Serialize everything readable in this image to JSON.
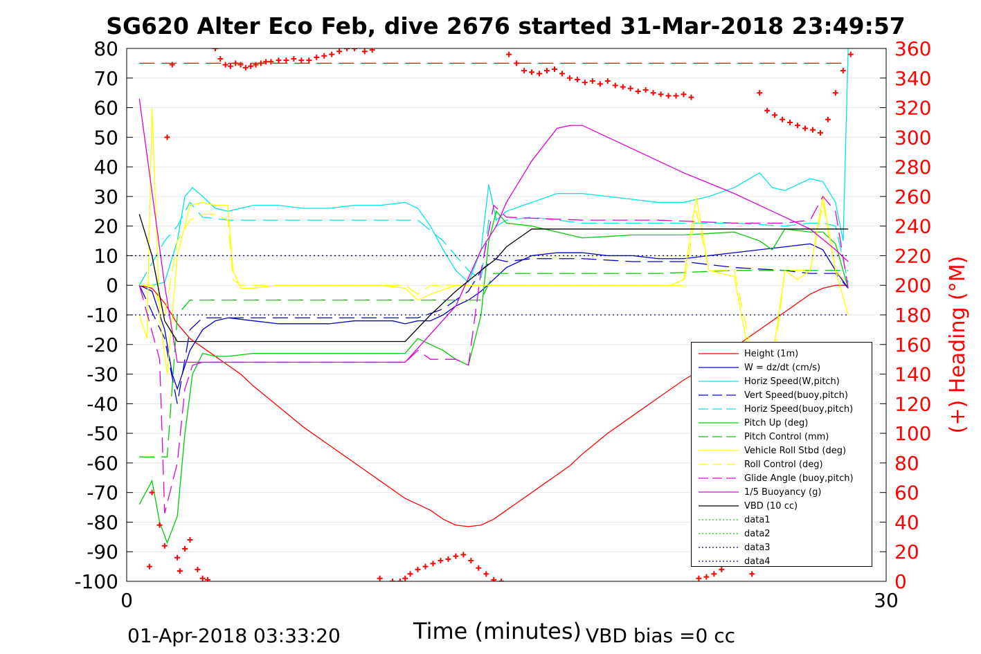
{
  "title": "SG620 Alter Eco Feb, dive 2676 started 31-Mar-2018 23:49:57",
  "footer": {
    "end_time": "01-Apr-2018 03:33:20",
    "xlabel": "Time (minutes)",
    "vbd_bias": "VBD bias =0 cc"
  },
  "chart_data": {
    "type": "line",
    "title": "SG620 Alter Eco Feb, dive 2676 started 31-Mar-2018 23:49:57",
    "xlabel": "Time (minutes)",
    "ylabel": "",
    "y2label": "(+) Heading (°M)",
    "xlim": [
      0,
      30
    ],
    "ylim": [
      -100,
      80
    ],
    "y2lim": [
      0,
      360
    ],
    "xticks": [
      "0",
      "30"
    ],
    "yticks": [
      "80",
      "70",
      "60",
      "50",
      "40",
      "30",
      "20",
      "10",
      "0",
      "-10",
      "-20",
      "-30",
      "-40",
      "-50",
      "-60",
      "-70",
      "-80",
      "-90",
      "-100"
    ],
    "y2ticks": [
      "360",
      "340",
      "320",
      "300",
      "280",
      "260",
      "240",
      "220",
      "200",
      "180",
      "160",
      "140",
      "120",
      "100",
      "80",
      "60",
      "40",
      "20",
      "0"
    ],
    "grid": true,
    "legend_position": "bottom-right",
    "series": [
      {
        "name": "Height (1m)",
        "color": "#ff0000",
        "style": "solid",
        "x": [
          0.5,
          1.0,
          1.5,
          2.0,
          2.5,
          3.0,
          3.5,
          4.0,
          4.5,
          5.0,
          6.0,
          7.0,
          8.0,
          9.0,
          10.0,
          11.0,
          12.0,
          12.5,
          13.0,
          13.5,
          14.0,
          14.5,
          15.0,
          15.5,
          16.0,
          16.5,
          17.0,
          17.5,
          18.0,
          19.0,
          20.0,
          21.0,
          22.0,
          23.0,
          24.0,
          25.0,
          25.5,
          26.0,
          26.5,
          27.0,
          27.5,
          28.0,
          28.5
        ],
        "y": [
          0,
          -1,
          -6,
          -13,
          -18,
          -21,
          -24,
          -27,
          -30,
          -34,
          -41,
          -48,
          -54,
          -60,
          -66,
          -72,
          -76,
          -79,
          -81,
          -81.5,
          -81,
          -79,
          -76,
          -73,
          -70,
          -67,
          -64,
          -61,
          -57,
          -50,
          -44,
          -38,
          -32,
          -27,
          -21,
          -15,
          -12,
          -9,
          -6,
          -3,
          -1,
          0,
          0
        ]
      },
      {
        "name": "W = dz/dt (cm/s)",
        "color": "#0000cc",
        "style": "solid",
        "x": [
          0.5,
          1.0,
          1.5,
          1.8,
          2.0,
          2.5,
          3.0,
          3.5,
          4.0,
          5.0,
          6.0,
          7.0,
          8.0,
          9.0,
          10.0,
          10.5,
          11.0,
          11.5,
          12.0,
          12.5,
          13.0,
          13.5,
          14.0,
          14.5,
          15.0,
          16.0,
          17.0,
          18.0,
          19.0,
          20.0,
          21.0,
          22.0,
          23.0,
          24.0,
          25.0,
          26.0,
          27.0,
          27.5,
          28.0,
          28.5
        ],
        "y": [
          0,
          -2,
          -15,
          -30,
          -35,
          -22,
          -15,
          -12,
          -11,
          -12,
          -13,
          -13,
          -13,
          -12,
          -12,
          -12,
          -13,
          -12,
          -12,
          -10,
          -7,
          -5,
          -2,
          2,
          6,
          10,
          11,
          11,
          10,
          10,
          9,
          9,
          10,
          11,
          12,
          13,
          14,
          12,
          5,
          -1
        ]
      },
      {
        "name": "Horiz Speed(W,pitch)",
        "color": "#00e5e5",
        "style": "solid",
        "x": [
          0.5,
          1.0,
          1.5,
          2.0,
          2.3,
          2.6,
          3.0,
          3.5,
          4.0,
          5.0,
          6.0,
          7.0,
          8.0,
          9.0,
          10.0,
          11.0,
          11.5,
          12.0,
          12.5,
          13.0,
          13.5,
          14.0,
          14.3,
          14.6,
          15.0,
          16.0,
          17.0,
          18.0,
          19.0,
          20.0,
          21.0,
          22.0,
          23.0,
          24.0,
          25.0,
          25.5,
          26.0,
          26.5,
          27.0,
          27.5,
          28.0,
          28.3,
          28.5
        ],
        "y": [
          0,
          0,
          1,
          15,
          30,
          33,
          30,
          26,
          25,
          27,
          27,
          26,
          26,
          27,
          27,
          28,
          26,
          20,
          12,
          5,
          1,
          12,
          34,
          22,
          25,
          28,
          31,
          31,
          30,
          29,
          28,
          28,
          30,
          33,
          38,
          33,
          32,
          34,
          36,
          35,
          28,
          15,
          80
        ]
      },
      {
        "name": "Vert Speed(buoy,pitch)",
        "color": "#0000cc",
        "style": "dashed",
        "x": [
          0.5,
          1.5,
          2.0,
          2.5,
          3.0,
          4.0,
          6.0,
          8.0,
          10.0,
          11.0,
          11.5,
          12.5,
          13.5,
          14.0,
          14.5,
          15.0,
          16.0,
          18.0,
          20.0,
          22.0,
          24.0,
          26.0,
          27.0,
          27.5,
          28.0,
          28.5
        ],
        "y": [
          0,
          -18,
          -40,
          -15,
          -11,
          -11,
          -11,
          -11,
          -11,
          -11,
          -11,
          -8,
          -2,
          5,
          9,
          8,
          9,
          9,
          8,
          8,
          6,
          5,
          4,
          4,
          4,
          -1
        ]
      },
      {
        "name": "Horiz Speed(buoy,pitch)",
        "color": "#00e5e5",
        "style": "dashed",
        "x": [
          0.5,
          1.5,
          2.0,
          2.5,
          3.0,
          4.0,
          6.0,
          8.0,
          10.0,
          11.0,
          11.5,
          12.5,
          13.5,
          14.0,
          14.3,
          14.6,
          15.0,
          16.0,
          18.0,
          20.0,
          22.0,
          24.0,
          26.0,
          27.0,
          27.5,
          28.0,
          28.5
        ],
        "y": [
          0,
          15,
          20,
          28,
          23,
          22,
          22,
          22,
          22,
          22,
          22,
          15,
          5,
          2,
          22,
          20,
          22,
          23,
          21,
          21,
          21,
          21,
          20,
          21,
          21,
          20,
          1
        ]
      },
      {
        "name": "Pitch Up (deg)",
        "color": "#00cc00",
        "style": "solid",
        "x": [
          0.5,
          1.0,
          1.3,
          1.6,
          2.0,
          2.3,
          2.6,
          3.0,
          3.5,
          4.0,
          5.0,
          6.0,
          8.0,
          10.0,
          11.0,
          11.5,
          12.0,
          12.5,
          13.0,
          13.5,
          14.0,
          14.3,
          14.6,
          15.0,
          16.0,
          18.0,
          20.0,
          22.0,
          24.0,
          25.0,
          25.5,
          26.0,
          27.0,
          27.5,
          28.0,
          28.5
        ],
        "y": [
          -74,
          -66,
          -80,
          -87,
          -78,
          -50,
          -30,
          -23,
          -24,
          -24,
          -23,
          -23,
          -23,
          -23,
          -23,
          -18,
          -20,
          -22,
          -25,
          -27,
          -10,
          15,
          25,
          21,
          20,
          16,
          17,
          17,
          18,
          15,
          12,
          19,
          18,
          18,
          14,
          -1
        ]
      },
      {
        "name": "Pitch Control (mm)",
        "color": "#00cc00",
        "style": "dashed",
        "x": [
          0.5,
          1.3,
          1.6,
          2.0,
          2.5,
          3.0,
          5.0,
          8.0,
          11.0,
          11.5,
          12.0,
          13.0,
          13.5,
          14.0,
          14.5,
          15.0,
          18.0,
          21.0,
          24.0,
          27.0,
          28.0,
          28.5
        ],
        "y": [
          -58,
          -58,
          -58,
          -10,
          -5,
          -5,
          -5,
          -5,
          -5,
          -5,
          -5,
          -5,
          -5,
          -5,
          4,
          4,
          4,
          4,
          5,
          5,
          5,
          5
        ]
      },
      {
        "name": "Vehicle Roll Stbd (deg)",
        "color": "#ffff00",
        "style": "solid",
        "x": [
          0.5,
          0.8,
          1.0,
          1.3,
          1.6,
          2.0,
          2.5,
          3.0,
          3.5,
          4.0,
          4.2,
          4.5,
          5.0,
          6.0,
          8.0,
          10.0,
          11.0,
          11.5,
          12.0,
          13.0,
          14.0,
          15.0,
          16.0,
          18.0,
          20.0,
          21.5,
          22.0,
          22.5,
          23.0,
          23.5,
          24.0,
          24.5,
          25.0,
          25.5,
          26.0,
          26.5,
          27.0,
          27.5,
          28.0,
          28.5
        ],
        "y": [
          -10,
          -18,
          60,
          -10,
          -30,
          10,
          27,
          28,
          27,
          27,
          5,
          -1,
          -1,
          0,
          0,
          0,
          -1,
          -5,
          -3,
          0,
          0,
          0,
          0,
          0,
          0,
          0,
          2,
          30,
          5,
          4,
          3,
          -20,
          -35,
          -25,
          5,
          2,
          5,
          30,
          5,
          -10
        ]
      },
      {
        "name": "Roll Control (deg)",
        "color": "#ffff00",
        "style": "dashed",
        "x": [
          0.5,
          1.0,
          1.5,
          2.0,
          2.5,
          3.0,
          3.5,
          4.0,
          4.2,
          4.5,
          5.0,
          8.0,
          10.0,
          11.0,
          11.5,
          12.0,
          14.0,
          16.0,
          18.0,
          20.0,
          22.0,
          22.5,
          23.0,
          24.0,
          24.5,
          25.0,
          25.5,
          26.0,
          27.0,
          27.5,
          28.0,
          28.5
        ],
        "y": [
          0,
          0,
          -10,
          15,
          22,
          24,
          24,
          22,
          2,
          0,
          0,
          0,
          0,
          0,
          -3,
          0,
          0,
          0,
          0,
          0,
          0,
          25,
          5,
          5,
          -15,
          -38,
          -30,
          5,
          5,
          28,
          5,
          0
        ]
      },
      {
        "name": "Glide Angle (buoy,pitch)",
        "color": "#dd00dd",
        "style": "dashed",
        "x": [
          0.5,
          1.3,
          1.5,
          2.0,
          2.3,
          2.6,
          3.0,
          3.5,
          4.0,
          6.0,
          8.0,
          10.0,
          11.0,
          11.5,
          12.0,
          12.5,
          13.0,
          13.5,
          14.0,
          14.5,
          15.0,
          18.0,
          21.0,
          24.0,
          26.0,
          27.0,
          27.5,
          28.0,
          28.5
        ],
        "y": [
          0,
          -25,
          -77,
          -60,
          -35,
          -27,
          -26,
          -26,
          -26,
          -26,
          -26,
          -26,
          -26,
          -22,
          -25,
          -25,
          -25,
          -27,
          5,
          27,
          23,
          22,
          22,
          21,
          21,
          22,
          30,
          25,
          -1
        ]
      },
      {
        "name": "1/5 Buoyancy (g)",
        "color": "#dd00dd",
        "style": "solid",
        "x": [
          0.5,
          1.5,
          2.0,
          2.5,
          3.0,
          4.0,
          6.0,
          8.0,
          10.0,
          11.0,
          13.0,
          14.0,
          14.6,
          15.0,
          16.0,
          17.0,
          17.5,
          18.0,
          20.0,
          22.0,
          24.0,
          26.0,
          27.0,
          28.0,
          28.5
        ],
        "y": [
          63,
          0,
          -26,
          -26,
          -26,
          -26,
          -26,
          -26,
          -26,
          -26,
          -7,
          12,
          20,
          28,
          42,
          53,
          54,
          54,
          46,
          38,
          31,
          23,
          19,
          12,
          8
        ]
      },
      {
        "name": "VBD (10 cc)",
        "color": "#000000",
        "style": "solid",
        "x": [
          0.5,
          1.0,
          1.5,
          2.0,
          3.0,
          5.0,
          8.0,
          10.0,
          11.0,
          12.0,
          13.0,
          14.0,
          14.6,
          15.0,
          16.0,
          17.0,
          18.0,
          20.0,
          22.0,
          24.0,
          26.0,
          28.5
        ],
        "y": [
          24,
          10,
          -12,
          -19,
          -19,
          -19,
          -19,
          -19,
          -19,
          -10,
          -2,
          5,
          9,
          13,
          19,
          19,
          19,
          19,
          19,
          19,
          19,
          19
        ]
      },
      {
        "name": "data1",
        "color": "#00cc00",
        "style": "dotted",
        "x": [],
        "y": []
      },
      {
        "name": "data2",
        "color": "#00cc00",
        "style": "dotted",
        "x": [],
        "y": []
      },
      {
        "name": "data3",
        "color": "#000080",
        "style": "dotted",
        "x": [
          0,
          28.5
        ],
        "y": [
          10,
          10
        ]
      },
      {
        "name": "data4",
        "color": "#000080",
        "style": "dotted",
        "x": [
          0,
          28.5
        ],
        "y": [
          -10,
          -10
        ]
      }
    ],
    "heading_reference": {
      "axis": "y2",
      "value": 350,
      "color": "#ff0000",
      "style": "dashed",
      "x": [
        0.5,
        28.5
      ]
    },
    "heading": {
      "name": "(+) Heading (°M)",
      "axis": "y2",
      "color": "#ff0000",
      "marker": "+",
      "x": [
        0.9,
        1.0,
        1.3,
        1.5,
        1.6,
        1.8,
        2.0,
        2.1,
        2.3,
        2.5,
        2.8,
        3.0,
        3.2,
        3.5,
        3.7,
        3.9,
        4.1,
        4.3,
        4.5,
        4.7,
        4.9,
        5.1,
        5.3,
        5.5,
        5.7,
        6.0,
        6.3,
        6.6,
        6.9,
        7.2,
        7.5,
        7.8,
        8.1,
        8.4,
        8.7,
        9.0,
        9.4,
        9.7,
        10.0,
        10.5,
        10.8,
        11.0,
        11.2,
        11.5,
        11.8,
        12.1,
        12.4,
        12.7,
        13.0,
        13.3,
        13.6,
        13.9,
        14.2,
        14.5,
        14.8,
        15.1,
        15.4,
        15.7,
        16.0,
        16.3,
        16.6,
        16.9,
        17.2,
        17.5,
        17.8,
        18.1,
        18.4,
        18.7,
        19.0,
        19.3,
        19.6,
        19.9,
        20.2,
        20.5,
        20.8,
        21.1,
        21.4,
        21.7,
        22.0,
        22.3,
        22.6,
        22.9,
        23.2,
        23.5,
        23.8,
        24.1,
        24.4,
        24.7,
        25.0,
        25.3,
        25.6,
        25.9,
        26.2,
        26.5,
        26.8,
        27.1,
        27.4,
        27.7,
        28.0,
        28.3,
        28.6
      ],
      "y": [
        10,
        60,
        38,
        24,
        300,
        349,
        16,
        7,
        22,
        28,
        8,
        2,
        1,
        360,
        353,
        349,
        348,
        350,
        349,
        347,
        348,
        349,
        350,
        351,
        351,
        352,
        352,
        353,
        352,
        352,
        354,
        355,
        356,
        358,
        360,
        360,
        358,
        359,
        2,
        0,
        0,
        2,
        5,
        8,
        10,
        12,
        14,
        15,
        17,
        18,
        14,
        9,
        5,
        1,
        0,
        356,
        350,
        345,
        344,
        343,
        345,
        346,
        343,
        340,
        339,
        337,
        338,
        336,
        338,
        335,
        334,
        333,
        331,
        332,
        330,
        329,
        328,
        328,
        329,
        327,
        2,
        3,
        5,
        8,
        12,
        14,
        17,
        5,
        330,
        318,
        315,
        312,
        310,
        308,
        306,
        305,
        303,
        312,
        330,
        345,
        356
      ]
    }
  }
}
